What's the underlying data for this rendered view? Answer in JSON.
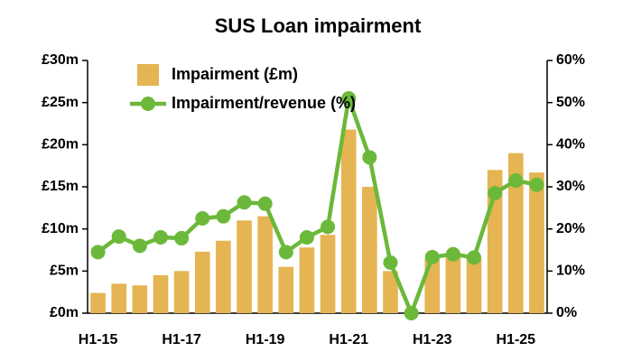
{
  "chart_data": {
    "type": "bar-line",
    "title": "SUS Loan impairment",
    "categories": [
      "H1-15",
      null,
      null,
      null,
      "H1-17",
      null,
      null,
      null,
      "H1-19",
      null,
      null,
      null,
      "H1-21",
      null,
      null,
      null,
      "H1-23",
      null,
      null,
      null,
      "H1-25",
      null
    ],
    "series": [
      {
        "name": "Impairment (£m)",
        "type": "bar",
        "color": "#e4b552",
        "values": [
          2.4,
          3.5,
          3.3,
          4.5,
          5.0,
          7.3,
          8.6,
          11.0,
          11.5,
          5.5,
          7.8,
          9.3,
          21.8,
          15.0,
          5.0,
          0,
          6.5,
          7.0,
          6.5,
          17.0,
          19.0,
          16.7
        ]
      },
      {
        "name": "Impairment/revenue (%)",
        "type": "line",
        "axis": "y2",
        "color": "#6cb83a",
        "values": [
          14.5,
          18.2,
          16,
          18,
          17.8,
          22.5,
          23,
          26.3,
          26,
          14.5,
          18,
          20.5,
          51,
          37,
          12,
          0,
          13.3,
          14,
          13.2,
          28.5,
          31.5,
          30.5
        ]
      }
    ],
    "ylim": [
      0,
      30
    ],
    "yticks": [
      {
        "value": 0,
        "label": "£0m"
      },
      {
        "value": 5,
        "label": "£5m"
      },
      {
        "value": 10,
        "label": "£10m"
      },
      {
        "value": 15,
        "label": "£15m"
      },
      {
        "value": 20,
        "label": "£20m"
      },
      {
        "value": 25,
        "label": "£25m"
      },
      {
        "value": 30,
        "label": "£30m"
      }
    ],
    "y2lim": [
      0,
      60
    ],
    "y2ticks": [
      {
        "value": 0,
        "label": "0%"
      },
      {
        "value": 10,
        "label": "10%"
      },
      {
        "value": 20,
        "label": "20%"
      },
      {
        "value": 30,
        "label": "30%"
      },
      {
        "value": 40,
        "label": "40%"
      },
      {
        "value": 50,
        "label": "50%"
      },
      {
        "value": 60,
        "label": "60%"
      }
    ],
    "legend": "upper-left"
  }
}
